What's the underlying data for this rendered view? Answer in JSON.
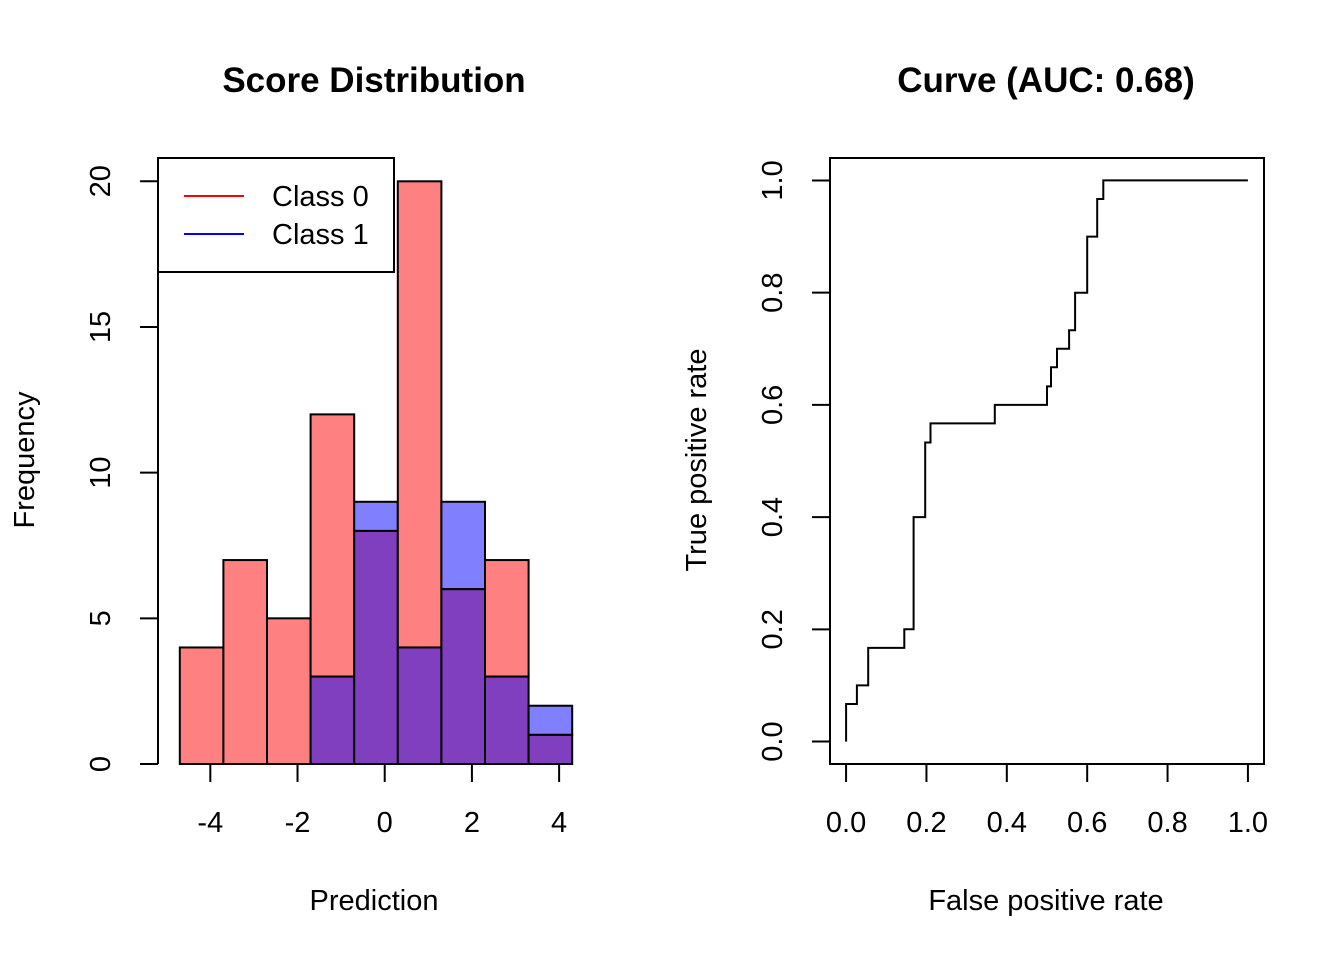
{
  "chart_data": [
    {
      "type": "bar",
      "title": "Score Distribution",
      "xlabel": "Prediction",
      "ylabel": "Frequency",
      "bin_edges": [
        -4.7,
        -3.7,
        -2.7,
        -1.7,
        -0.7,
        0.3,
        1.3,
        2.3,
        3.3,
        4.3
      ],
      "series": [
        {
          "name": "Class 0",
          "values": [
            4,
            7,
            5,
            12,
            8,
            20,
            6,
            7,
            1
          ]
        },
        {
          "name": "Class 1",
          "values": [
            0,
            0,
            0,
            3,
            9,
            4,
            9,
            3,
            2
          ]
        }
      ],
      "series_colors": [
        "#FF8080",
        "#8080FF"
      ],
      "overlap_color": "#7F3FBF",
      "legend_line_colors": [
        "#FF0000",
        "#0000FF"
      ],
      "xticks": [
        "-4",
        "-2",
        "0",
        "2",
        "4"
      ],
      "xtick_values": [
        -4,
        -2,
        0,
        2,
        4
      ],
      "yticks": [
        "0",
        "5",
        "10",
        "15",
        "20"
      ],
      "ytick_values": [
        0,
        5,
        10,
        15,
        20
      ],
      "xlim": [
        -5.2,
        4.8
      ],
      "ylim": [
        0,
        20.8
      ],
      "legend_position": "top-left",
      "grid": false
    },
    {
      "type": "line",
      "title": "Curve (AUC: 0.68)",
      "xlabel": "False positive rate",
      "ylabel": "True positive rate",
      "x": [
        0,
        0,
        0.027,
        0.027,
        0.055,
        0.055,
        0.145,
        0.145,
        0.168,
        0.168,
        0.197,
        0.197,
        0.21,
        0.21,
        0.37,
        0.37,
        0.5,
        0.5,
        0.51,
        0.51,
        0.525,
        0.525,
        0.555,
        0.555,
        0.57,
        0.57,
        0.6,
        0.6,
        0.625,
        0.625,
        0.64,
        0.64,
        1.0
      ],
      "y": [
        0,
        0.067,
        0.067,
        0.1,
        0.1,
        0.167,
        0.167,
        0.2,
        0.2,
        0.4,
        0.4,
        0.533,
        0.533,
        0.567,
        0.567,
        0.6,
        0.6,
        0.633,
        0.633,
        0.667,
        0.667,
        0.7,
        0.7,
        0.733,
        0.733,
        0.8,
        0.8,
        0.9,
        0.9,
        0.967,
        0.967,
        1.0,
        1.0
      ],
      "xticks": [
        "0.0",
        "0.2",
        "0.4",
        "0.6",
        "0.8",
        "1.0"
      ],
      "xtick_values": [
        0,
        0.2,
        0.4,
        0.6,
        0.8,
        1.0
      ],
      "yticks": [
        "0.0",
        "0.2",
        "0.4",
        "0.6",
        "0.8",
        "1.0"
      ],
      "ytick_values": [
        0,
        0.2,
        0.4,
        0.6,
        0.8,
        1.0
      ],
      "xlim": [
        -0.04,
        1.04
      ],
      "ylim": [
        -0.04,
        1.04
      ],
      "line_color": "#000000",
      "grid": false
    }
  ]
}
